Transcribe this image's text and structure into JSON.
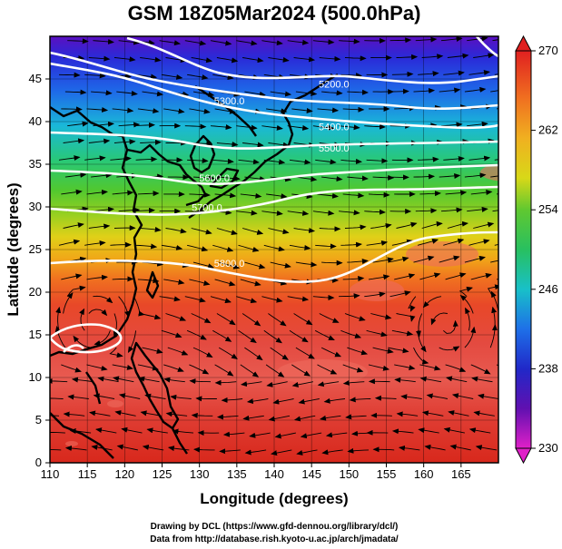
{
  "title": "GSM 18Z05Mar2024 (500.0hPa)",
  "x_axis": {
    "label": "Longitude (degrees)",
    "range": [
      110,
      170
    ],
    "ticks": [
      "110",
      "115",
      "120",
      "125",
      "130",
      "135",
      "140",
      "145",
      "150",
      "155",
      "160",
      "165"
    ]
  },
  "y_axis": {
    "label": "Latitude  (degrees)",
    "range": [
      0,
      50
    ],
    "ticks": [
      "0",
      "5",
      "10",
      "15",
      "20",
      "25",
      "30",
      "35",
      "40",
      "45"
    ]
  },
  "colorbar": {
    "range": [
      230,
      270
    ],
    "ticks": [
      "230",
      "238",
      "246",
      "254",
      "262",
      "270"
    ]
  },
  "contours": [
    {
      "label": "5200.0",
      "lon": 148,
      "lat": 44
    },
    {
      "label": "5300.0",
      "lon": 134,
      "lat": 42
    },
    {
      "label": "5400.0",
      "lon": 148,
      "lat": 39
    },
    {
      "label": "5500.0",
      "lon": 148,
      "lat": 36.5
    },
    {
      "label": "5600.0",
      "lon": 132,
      "lat": 33
    },
    {
      "label": "5700.0",
      "lon": 131,
      "lat": 29.5
    },
    {
      "label": "5800.0",
      "lon": 134,
      "lat": 23
    }
  ],
  "credits": {
    "line1": "Drawing by DCL (https://www.gfd-dennou.org/library/dcl/)",
    "line2": "Data from http://database.rish.kyoto-u.ac.jp/arch/jmadata/"
  },
  "colors": {
    "cold": "#8a00a8",
    "warm": "#d8201c",
    "contour": "#ffffff",
    "streamline": "#000000"
  }
}
